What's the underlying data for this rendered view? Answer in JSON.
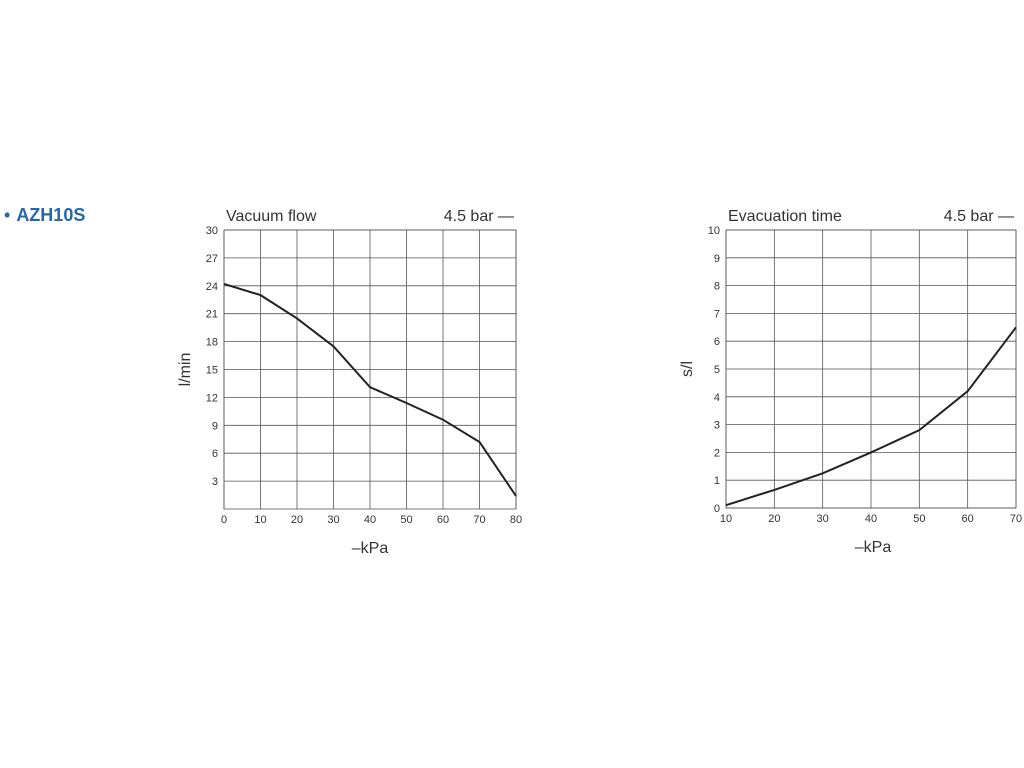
{
  "product": {
    "bullet": "•",
    "name": "AZH10S"
  },
  "colors": {
    "product": "#2766a6",
    "line": "#222222",
    "grid": "#555555"
  },
  "chart_data": [
    {
      "type": "line",
      "title": "Vacuum flow",
      "legend": "4.5 bar —",
      "xlabel": "–kPa",
      "ylabel": "l/min",
      "xlim": [
        0,
        80
      ],
      "ylim": [
        0,
        30
      ],
      "xticks": [
        "0",
        "10",
        "20",
        "30",
        "40",
        "50",
        "60",
        "70",
        "80"
      ],
      "yticks": [
        "3",
        "6",
        "9",
        "12",
        "15",
        "18",
        "21",
        "24",
        "27",
        "30"
      ],
      "grid": true,
      "series": [
        {
          "x": [
            0,
            10,
            20,
            30,
            40,
            50,
            60,
            70,
            80
          ],
          "y": [
            24.2,
            23.0,
            20.5,
            17.5,
            13.1,
            11.4,
            9.6,
            7.2,
            1.4
          ]
        }
      ]
    },
    {
      "type": "line",
      "title": "Evacuation time",
      "legend": "4.5 bar —",
      "xlabel": "–kPa",
      "ylabel": "s/l",
      "xlim": [
        10,
        70
      ],
      "ylim": [
        0,
        10
      ],
      "xticks": [
        "10",
        "20",
        "30",
        "40",
        "50",
        "60",
        "70"
      ],
      "yticks": [
        "0",
        "1",
        "2",
        "3",
        "4",
        "5",
        "6",
        "7",
        "8",
        "9",
        "10"
      ],
      "grid": true,
      "series": [
        {
          "x": [
            10,
            20,
            30,
            40,
            50,
            60,
            70
          ],
          "y": [
            0.1,
            0.65,
            1.25,
            2.0,
            2.8,
            4.2,
            6.5
          ]
        }
      ]
    }
  ]
}
